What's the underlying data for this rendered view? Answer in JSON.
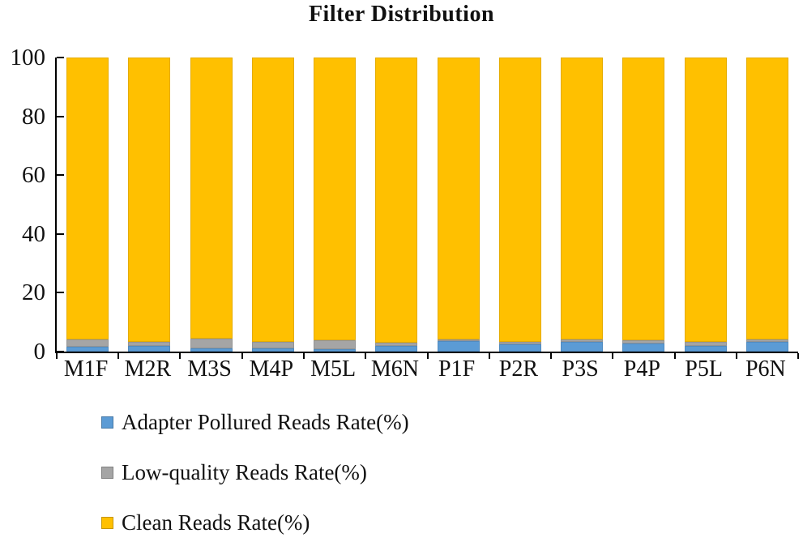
{
  "chart_data": {
    "type": "bar",
    "stacked": true,
    "title": "Filter Distribution",
    "categories": [
      "M1F",
      "M2R",
      "M3S",
      "M4P",
      "M5L",
      "M6N",
      "P1F",
      "P2R",
      "P3S",
      "P4P",
      "P5L",
      "P6N"
    ],
    "series": [
      {
        "name": "Adapter Pollured Reads Rate(%)",
        "color": "#5B9BD5",
        "values": [
          1.7,
          1.9,
          1.0,
          1.2,
          0.8,
          2.0,
          3.5,
          2.5,
          3.2,
          2.8,
          1.8,
          3.4
        ]
      },
      {
        "name": "Low-quality Reads Rate(%)",
        "color": "#A5A5A5",
        "values": [
          2.5,
          1.4,
          3.3,
          2.0,
          3.2,
          1.0,
          0.7,
          0.9,
          0.9,
          1.1,
          1.5,
          0.8
        ]
      },
      {
        "name": "Clean Reads Rate(%)",
        "color": "#FFC000",
        "values": [
          95.8,
          96.7,
          95.7,
          96.8,
          96.0,
          97.0,
          95.8,
          96.6,
          95.9,
          96.1,
          96.7,
          95.8
        ]
      }
    ],
    "xlabel": "",
    "ylabel": "",
    "ylim": [
      0,
      100
    ],
    "yticks": [
      0,
      20,
      40,
      60,
      80,
      100
    ],
    "grid": false,
    "legend_position": "bottom-left",
    "axis_color": "#000000",
    "text_color": "#111111"
  }
}
